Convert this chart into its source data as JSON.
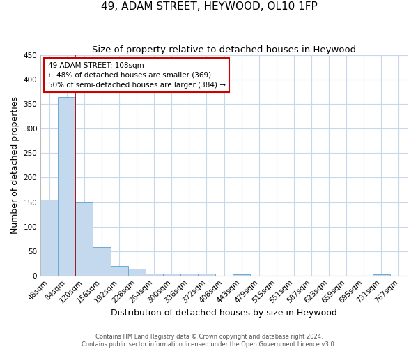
{
  "title": "49, ADAM STREET, HEYWOOD, OL10 1FP",
  "subtitle": "Size of property relative to detached houses in Heywood",
  "xlabel": "Distribution of detached houses by size in Heywood",
  "ylabel": "Number of detached properties",
  "categories": [
    "48sqm",
    "84sqm",
    "120sqm",
    "156sqm",
    "192sqm",
    "228sqm",
    "264sqm",
    "300sqm",
    "336sqm",
    "372sqm",
    "408sqm",
    "443sqm",
    "479sqm",
    "515sqm",
    "551sqm",
    "587sqm",
    "623sqm",
    "659sqm",
    "695sqm",
    "731sqm",
    "767sqm"
  ],
  "values": [
    155,
    365,
    150,
    58,
    19,
    14,
    4,
    4,
    4,
    4,
    0,
    3,
    0,
    0,
    0,
    0,
    0,
    0,
    0,
    3,
    0
  ],
  "bar_color": "#c5d9ee",
  "bar_edge_color": "#6aaad4",
  "ylim": [
    0,
    450
  ],
  "yticks": [
    0,
    50,
    100,
    150,
    200,
    250,
    300,
    350,
    400,
    450
  ],
  "red_line_x": 1.5,
  "annotation_text": "49 ADAM STREET: 108sqm\n← 48% of detached houses are smaller (369)\n50% of semi-detached houses are larger (384) →",
  "annotation_box_color": "#ffffff",
  "annotation_box_edge_color": "#cc0000",
  "footer_text": "Contains HM Land Registry data © Crown copyright and database right 2024.\nContains public sector information licensed under the Open Government Licence v3.0.",
  "background_color": "#ffffff",
  "grid_color": "#c8d8ea",
  "title_fontsize": 11,
  "subtitle_fontsize": 9.5,
  "axis_label_fontsize": 9,
  "tick_fontsize": 7.5,
  "footer_fontsize": 6
}
